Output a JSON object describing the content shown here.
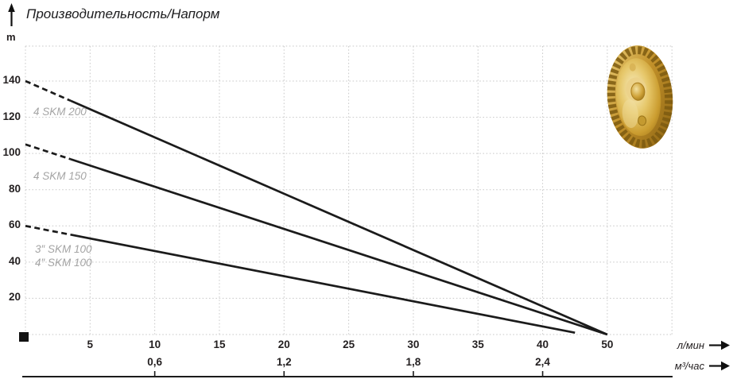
{
  "header": {
    "title": "Производительность/Напорм",
    "y_unit_label": "m"
  },
  "y_axis": {
    "tick_labels": [
      "140",
      "120",
      "100",
      "80",
      "60",
      "40",
      "20"
    ]
  },
  "x_axis_primary": {
    "tick_labels": [
      "5",
      "10",
      "15",
      "20",
      "25",
      "30",
      "35",
      "40",
      "50"
    ],
    "unit": "л/мин"
  },
  "x_axis_secondary": {
    "tick_labels": [
      "0,6",
      "1,2",
      "1,8",
      "2,4"
    ],
    "unit": "м³/час"
  },
  "series_labels": {
    "skm200": "4 SKM 200",
    "skm150": "4 SKM 150",
    "skm100_3in": "3″ SKM 100",
    "skm100_4in": "4″ SKM 100"
  },
  "colors": {
    "line": "#1b1b1b",
    "grid": "#c9c9c9",
    "text": "#231f20",
    "series_label": "#a4a4a4",
    "impeller_gold": "#cfa12f"
  },
  "chart_data": {
    "type": "line",
    "title": "Производительность/Напорм",
    "ylabel": "m",
    "xlabel_primary": "л/мин",
    "xlabel_secondary": "м³/час",
    "ylim": [
      0,
      160
    ],
    "y_ticks": [
      20,
      40,
      60,
      80,
      100,
      120,
      140
    ],
    "x_ticks_primary": [
      5,
      10,
      15,
      20,
      25,
      30,
      35,
      40,
      50
    ],
    "x_ticks_secondary": [
      0.6,
      1.2,
      1.8,
      2.4
    ],
    "x_secondary_alignment": "0,6 м³/час aligns with 10 л/мин; 2,4 aligns with 40",
    "x_scale_note": "vertical gridlines evenly spaced every 5 л/мин up to 40; the 40-to-50 interval is compressed into a single gridline step",
    "grid": true,
    "legend_position": "inline-left",
    "series": [
      {
        "name": "4 SKM 200",
        "points": [
          [
            0,
            140
          ],
          [
            50,
            0
          ]
        ],
        "dashed_until_x": 3.5
      },
      {
        "name": "4 SKM 150",
        "points": [
          [
            0,
            105
          ],
          [
            50,
            0
          ]
        ],
        "dashed_until_x": 3.5
      },
      {
        "name": "3″/4″ SKM 100",
        "points": [
          [
            0,
            60
          ],
          [
            45,
            1
          ]
        ],
        "dashed_until_x": 3.5
      }
    ]
  }
}
